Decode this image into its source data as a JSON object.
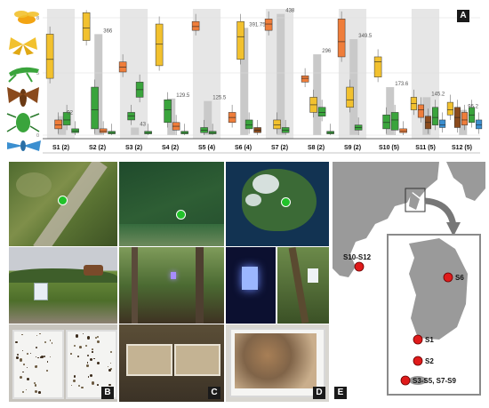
{
  "panel_labels": {
    "a": "A",
    "b": "B",
    "c": "C",
    "d": "D",
    "e": "E"
  },
  "insect_icons": [
    "fly-icon",
    "butterfly-icon",
    "grasshopper-icon",
    "moth-icon",
    "beetle-icon",
    "dragonfly-icon"
  ],
  "axis_ticks": [
    "8",
    "5",
    "0"
  ],
  "sites": [
    {
      "label": "S1 (2)",
      "total": "92"
    },
    {
      "label": "S2 (2)",
      "total": "366"
    },
    {
      "label": "S3 (2)",
      "total": "43"
    },
    {
      "label": "S4 (2)",
      "total": "129.5"
    },
    {
      "label": "S5 (4)",
      "total": "125.5"
    },
    {
      "label": "S6 (4)",
      "total": "391.75"
    },
    {
      "label": "S7 (2)",
      "total": "438"
    },
    {
      "label": "S8 (2)",
      "total": "296"
    },
    {
      "label": "S9 (2)",
      "total": "349.5"
    },
    {
      "label": "S10 (5)",
      "total": "173.6"
    },
    {
      "label": "S11 (5)",
      "total": "145.2"
    },
    {
      "label": "S12 (5)",
      "total": "95.2"
    }
  ],
  "map_labels": {
    "s10_s12": "S10-S12",
    "s6": "S6",
    "s1": "S1",
    "s2": "S2",
    "s3_s9": "S3-S5, S7-S9"
  },
  "colors": {
    "yellow": "#f2c12e",
    "orange": "#ef7d3a",
    "green": "#3aa43c",
    "brown": "#8a4a1c",
    "blue": "#3b8fd0",
    "marker": "#e01b1b",
    "site_dot": "#22c22a"
  }
}
